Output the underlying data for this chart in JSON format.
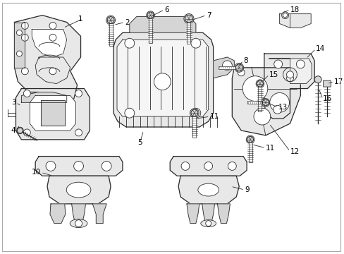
{
  "background_color": "#ffffff",
  "line_color": "#2a2a2a",
  "label_color": "#000000",
  "fig_width": 4.89,
  "fig_height": 3.6,
  "dpi": 100,
  "label_fontsize": 7.5
}
